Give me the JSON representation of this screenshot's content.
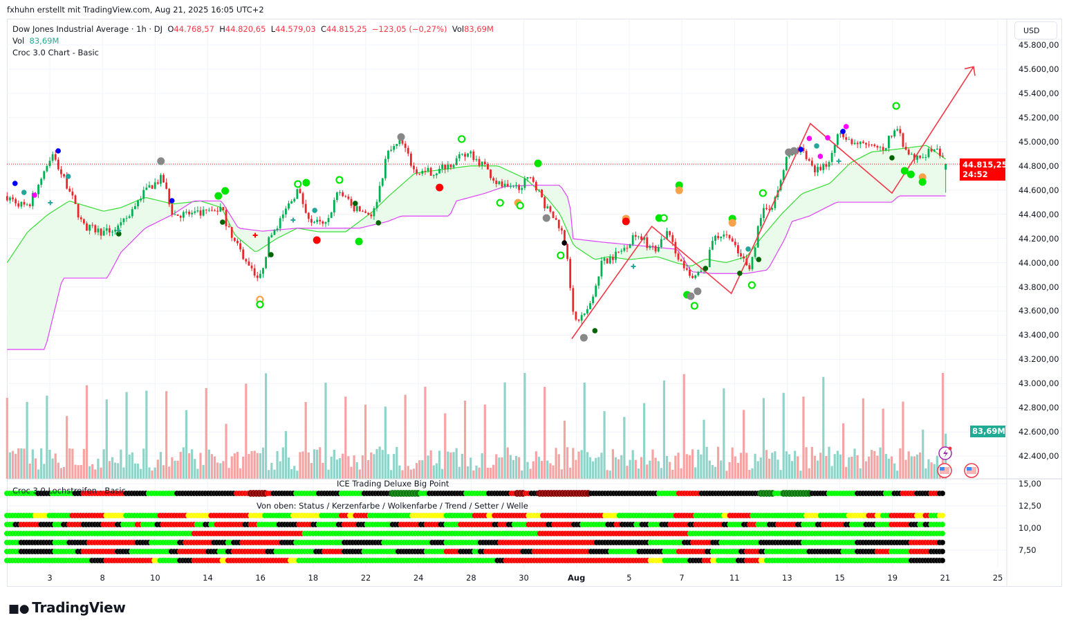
{
  "header": {
    "credit": "fxhuhn erstellt mit TradingView.com, Aug 21, 2025 16:05 UTC+2",
    "symbol": "Dow Jones Industrial Average · 1h · DJ",
    "o_label": "O",
    "o": "44.768,57",
    "h_label": "H",
    "h": "44.820,65",
    "l_label": "L",
    "l": "44.579,03",
    "c_label": "C",
    "c": "44.815,25",
    "change": "−123,05 (−0,27%)",
    "vol_label": "Vol",
    "vol": "83,69M",
    "vol_line_label": "Vol",
    "vol_line_value": "83,69M",
    "indicator": "Croc 3.0 Chart - Basic"
  },
  "price_axis": {
    "currency": "USD",
    "ticks": [
      "45.800,00",
      "45.600,00",
      "45.400,00",
      "45.200,00",
      "45.000,00",
      "44.800,00",
      "44.600,00",
      "44.400,00",
      "44.200,00",
      "44.000,00",
      "43.800,00",
      "43.600,00",
      "43.400,00",
      "43.200,00",
      "43.000,00",
      "42.800,00",
      "42.600,00",
      "42.400,00"
    ],
    "last_price": "44.815,25",
    "countdown": "24:52",
    "volume_badge": "83,69M"
  },
  "indicator_pane": {
    "title_center": "ICE Trading Deluxe Big Point",
    "title_left": "Croc 3.0 Lochstreifen - Basic",
    "subtitle": "Von oben: Status / Kerzenfarbe / Wolkenfarbe / Trend / Setter / Welle",
    "ticks": [
      "15,00",
      "12,50",
      "10,00",
      "7,50"
    ]
  },
  "time_axis": {
    "ticks": [
      "3",
      "8",
      "10",
      "14",
      "16",
      "18",
      "22",
      "24",
      "28",
      "30",
      "Aug",
      "5",
      "7",
      "11",
      "13",
      "15",
      "19",
      "21",
      "25"
    ]
  },
  "branding": {
    "logo": "TradingView"
  },
  "colors": {
    "up": "#00b050",
    "down": "#e8262b",
    "cloud_line": "#33dd33",
    "cloud_fill": "#e9fbe9",
    "lower_line": "#e040fb",
    "lower_fill": "#fdeefd",
    "trend_drawing": "#f23645",
    "vol_up": "#8fd3c9",
    "vol_down": "#f5a3a3",
    "last_price": "#ff0000"
  },
  "chart_data": {
    "type": "candlestick",
    "title": "Dow Jones Industrial Average · 1h",
    "time_unit_note_ticks": [
      "3",
      "8",
      "10",
      "14",
      "16",
      "18",
      "22",
      "24",
      "28",
      "30",
      "Aug",
      "5",
      "7",
      "11",
      "13",
      "15",
      "19",
      "21",
      "25"
    ],
    "ylim": [
      42250,
      45950
    ],
    "last_bar": {
      "open": 44768.57,
      "high": 44820.65,
      "low": 44579.03,
      "close": 44815.25,
      "volume_m": 83.69
    },
    "close_path": [
      [
        -0.81,
        44550
      ],
      [
        -0.42,
        44450
      ],
      [
        0.04,
        44900
      ],
      [
        0.37,
        44600
      ],
      [
        0.63,
        44300
      ],
      [
        1.02,
        44250
      ],
      [
        1.35,
        44300
      ],
      [
        1.81,
        44600
      ],
      [
        2.14,
        44700
      ],
      [
        2.34,
        44400
      ],
      [
        2.86,
        44400
      ],
      [
        3.26,
        44450
      ],
      [
        3.45,
        44200
      ],
      [
        3.85,
        43950
      ],
      [
        3.98,
        43850
      ],
      [
        4.17,
        44200
      ],
      [
        4.44,
        44400
      ],
      [
        4.7,
        44600
      ],
      [
        4.96,
        44350
      ],
      [
        5.23,
        44300
      ],
      [
        5.49,
        44600
      ],
      [
        5.75,
        44450
      ],
      [
        6.14,
        44400
      ],
      [
        6.41,
        44900
      ],
      [
        6.67,
        45000
      ],
      [
        6.93,
        44750
      ],
      [
        7.33,
        44750
      ],
      [
        7.72,
        44850
      ],
      [
        7.98,
        44900
      ],
      [
        8.24,
        44800
      ],
      [
        8.51,
        44650
      ],
      [
        8.77,
        44600
      ],
      [
        9.16,
        44700
      ],
      [
        9.43,
        44450
      ],
      [
        9.69,
        44300
      ],
      [
        9.82,
        44100
      ],
      [
        9.95,
        43500
      ],
      [
        10.21,
        43600
      ],
      [
        10.48,
        44000
      ],
      [
        10.87,
        44100
      ],
      [
        11.13,
        44250
      ],
      [
        11.46,
        44100
      ],
      [
        11.72,
        44250
      ],
      [
        11.99,
        44000
      ],
      [
        12.18,
        43850
      ],
      [
        12.45,
        43950
      ],
      [
        12.58,
        44200
      ],
      [
        12.84,
        44250
      ],
      [
        13.1,
        44050
      ],
      [
        13.3,
        43950
      ],
      [
        13.5,
        44400
      ],
      [
        13.76,
        44500
      ],
      [
        14.02,
        44900
      ],
      [
        14.28,
        44950
      ],
      [
        14.55,
        44750
      ],
      [
        14.81,
        44850
      ],
      [
        15.01,
        45100
      ],
      [
        15.2,
        45000
      ],
      [
        15.6,
        44950
      ],
      [
        15.86,
        44950
      ],
      [
        16.06,
        45150
      ],
      [
        16.25,
        44900
      ],
      [
        16.52,
        44850
      ],
      [
        16.78,
        44950
      ],
      [
        17.01,
        44815.25
      ]
    ],
    "cloud_upper": [
      [
        -0.81,
        44000
      ],
      [
        -0.42,
        44255
      ],
      [
        -0.03,
        44400
      ],
      [
        0.37,
        44510
      ],
      [
        1.02,
        44425
      ],
      [
        1.35,
        44455
      ],
      [
        1.81,
        44540
      ],
      [
        2.34,
        44485
      ],
      [
        2.86,
        44510
      ],
      [
        3.26,
        44455
      ],
      [
        3.52,
        44225
      ],
      [
        3.91,
        44085
      ],
      [
        4.31,
        44200
      ],
      [
        4.7,
        44285
      ],
      [
        5.1,
        44255
      ],
      [
        5.62,
        44255
      ],
      [
        6.14,
        44425
      ],
      [
        6.41,
        44540
      ],
      [
        6.93,
        44740
      ],
      [
        7.46,
        44770
      ],
      [
        7.98,
        44800
      ],
      [
        8.51,
        44800
      ],
      [
        9.03,
        44695
      ],
      [
        9.43,
        44540
      ],
      [
        9.69,
        44400
      ],
      [
        9.95,
        44140
      ],
      [
        10.35,
        44025
      ],
      [
        10.61,
        44050
      ],
      [
        11.0,
        44025
      ],
      [
        11.53,
        44050
      ],
      [
        11.92,
        43995
      ],
      [
        12.18,
        43970
      ],
      [
        12.45,
        44030
      ],
      [
        12.84,
        44000
      ],
      [
        13.23,
        44050
      ],
      [
        13.5,
        44200
      ],
      [
        13.89,
        44400
      ],
      [
        14.28,
        44570
      ],
      [
        14.81,
        44655
      ],
      [
        15.2,
        44825
      ],
      [
        15.6,
        44915
      ],
      [
        16.12,
        44940
      ],
      [
        16.65,
        44970
      ],
      [
        17.01,
        44855
      ]
    ],
    "cloud_lower": [
      [
        -0.81,
        43282
      ],
      [
        -0.09,
        43282
      ],
      [
        0.24,
        43872
      ],
      [
        1.09,
        43872
      ],
      [
        1.35,
        44085
      ],
      [
        1.81,
        44285
      ],
      [
        2.34,
        44400
      ],
      [
        2.73,
        44510
      ],
      [
        3.26,
        44510
      ],
      [
        3.58,
        44285
      ],
      [
        4.04,
        44260
      ],
      [
        4.7,
        44285
      ],
      [
        5.36,
        44285
      ],
      [
        5.88,
        44285
      ],
      [
        6.41,
        44340
      ],
      [
        6.67,
        44385
      ],
      [
        7.59,
        44385
      ],
      [
        7.72,
        44510
      ],
      [
        8.24,
        44570
      ],
      [
        8.64,
        44630
      ],
      [
        9.16,
        44640
      ],
      [
        9.69,
        44640
      ],
      [
        9.88,
        44510
      ],
      [
        9.89,
        44200
      ],
      [
        10.48,
        44170
      ],
      [
        11.92,
        44110
      ],
      [
        12.18,
        43925
      ],
      [
        12.58,
        43910
      ],
      [
        13.23,
        43910
      ],
      [
        13.63,
        43940
      ],
      [
        13.96,
        44200
      ],
      [
        14.09,
        44340
      ],
      [
        14.42,
        44385
      ],
      [
        14.94,
        44500
      ],
      [
        15.99,
        44500
      ],
      [
        16.12,
        44552
      ],
      [
        17.01,
        44552
      ]
    ],
    "drawings": [
      [
        9.91,
        43370
      ],
      [
        11.43,
        44300
      ],
      [
        12.94,
        43745
      ],
      [
        14.44,
        45150
      ],
      [
        15.99,
        44575
      ],
      [
        17.54,
        45620
      ]
    ],
    "signals": [
      [
        -0.66,
        44655,
        "b",
        0
      ],
      [
        -0.49,
        44581,
        "t",
        0
      ],
      [
        -0.29,
        44558,
        "m",
        0
      ],
      [
        0.16,
        44924,
        "b",
        0
      ],
      [
        0.35,
        44713,
        "t",
        0
      ],
      [
        1.31,
        44238,
        "G",
        0
      ],
      [
        2.11,
        44839,
        "a",
        0
      ],
      [
        2.32,
        44512,
        "b",
        0
      ],
      [
        3.2,
        44552,
        "g",
        0
      ],
      [
        3.33,
        44593,
        "g",
        0
      ],
      [
        3.28,
        44335,
        "G",
        0
      ],
      [
        3.99,
        43694,
        "o",
        1
      ],
      [
        3.99,
        43654,
        "g",
        1
      ],
      [
        4.2,
        44066,
        "G",
        0
      ],
      [
        4.71,
        44650,
        "g",
        1
      ],
      [
        4.87,
        44661,
        "g",
        0
      ],
      [
        5.03,
        44432,
        "t",
        0
      ],
      [
        5.07,
        44186,
        "r",
        0
      ],
      [
        5.5,
        44684,
        "g",
        1
      ],
      [
        5.8,
        44490,
        "G",
        0
      ],
      [
        5.87,
        44175,
        "g",
        0
      ],
      [
        6.24,
        44329,
        "G",
        0
      ],
      [
        6.67,
        45039,
        "a",
        0
      ],
      [
        7.82,
        45022,
        "g",
        1
      ],
      [
        7.4,
        44621,
        "r",
        0
      ],
      [
        8.55,
        44495,
        "g",
        1
      ],
      [
        8.89,
        44495,
        "o",
        0
      ],
      [
        8.93,
        44472,
        "g",
        1
      ],
      [
        9.27,
        44821,
        "g",
        0
      ],
      [
        9.43,
        44369,
        "a",
        0
      ],
      [
        9.77,
        44163,
        "k",
        0
      ],
      [
        9.7,
        44060,
        "g",
        1
      ],
      [
        10.14,
        43379,
        "a",
        0
      ],
      [
        10.35,
        43437,
        "G",
        0
      ],
      [
        10.94,
        44364,
        "o",
        0
      ],
      [
        10.94,
        44341,
        "r",
        0
      ],
      [
        11.57,
        44369,
        "g",
        0
      ],
      [
        11.66,
        44369,
        "g",
        1
      ],
      [
        11.95,
        44640,
        "g",
        0
      ],
      [
        11.95,
        44598,
        "o",
        0
      ],
      [
        12.1,
        43734,
        "g",
        0
      ],
      [
        12.17,
        43723,
        "a",
        0
      ],
      [
        12.3,
        43763,
        "a",
        0
      ],
      [
        12.24,
        43643,
        "g",
        1
      ],
      [
        12.45,
        43952,
        "G",
        0
      ],
      [
        12.96,
        44364,
        "g",
        0
      ],
      [
        12.96,
        44329,
        "o",
        0
      ],
      [
        13.1,
        43912,
        "G",
        0
      ],
      [
        13.26,
        44112,
        "t",
        0
      ],
      [
        13.33,
        43814,
        "g",
        1
      ],
      [
        13.46,
        44026,
        "G",
        0
      ],
      [
        13.54,
        44575,
        "g",
        1
      ],
      [
        14.03,
        44913,
        "a",
        0
      ],
      [
        14.13,
        44924,
        "a",
        0
      ],
      [
        14.26,
        44936,
        "b",
        0
      ],
      [
        14.42,
        45027,
        "m",
        0
      ],
      [
        14.56,
        44965,
        "t",
        0
      ],
      [
        14.63,
        44879,
        "m",
        0
      ],
      [
        15.06,
        45085,
        "b",
        0
      ],
      [
        15.12,
        45125,
        "m",
        0
      ],
      [
        14.77,
        45033,
        "m",
        0
      ],
      [
        16.07,
        45296,
        "g",
        1
      ],
      [
        15.99,
        44867,
        "G",
        0
      ],
      [
        16.23,
        44759,
        "g",
        0
      ],
      [
        16.35,
        44730,
        "g",
        0
      ],
      [
        16.57,
        44707,
        "o",
        0
      ],
      [
        16.57,
        44667,
        "g",
        0
      ]
    ],
    "crosses": [
      [
        0.01,
        44495,
        "t"
      ],
      [
        1.31,
        44266,
        "t"
      ],
      [
        4.62,
        44352,
        "t"
      ],
      [
        11.08,
        43969,
        "t"
      ],
      [
        14.98,
        44839,
        "t"
      ],
      [
        3.9,
        44226,
        "r"
      ]
    ],
    "indicator_rows": [
      {
        "name": "lochstreifen",
        "value": 14.0,
        "runs": "g4k2g3k1r6k3g4k8r2d2r1k3g3k3g3k4G4g1k5g3k3r1d1r1k1d7k9g3r3k8G2g1G4k2g4k4g1k1r2k2r1k1"
      },
      {
        "name": "status",
        "value": 11.5,
        "runs": "g4y2g3r5y3g5r4y3r6y2g4y4g3r1y1r2g6y5g4r2y1r5y2r9y2g2g1g1g4r3g1g3y1r3g8y2g4y3r1y1g1r4y1r1g1y1"
      },
      {
        "name": "kerzenfarbe",
        "value": 10.5,
        "runs": "g1k1r3k2g1k1r2k3r2k1g2r1g2k1r5g1k1g1r4k1r1g3k3r2k1g3k1r2k1g4k1r3k1r2k1g2r5k1r1k1g2r3k1r3k1g4k1r1k2g1k1g2k1r3k1r4k1g2k1r1g2k1r3k1g2k1r3k1g2k2g2r3k1g1k1g2"
      },
      {
        "name": "wolkenfarbe",
        "value": 9.5,
        "runs": "g27r16g34r22g37"
      },
      {
        "name": "trend",
        "value": 8.5,
        "runs": "g2k5g2k3r7k2g4k1r4k2g1k1r6k2g7k6g7k2g4g1k3r5r9k8g5k1r3k1g6k6g8k8r4k1"
      },
      {
        "name": "setter",
        "value": 7.5,
        "runs": "g2k5g3k1r5k2g6k1r4k2g1k1r5k1g6k1r3k3g5k4g3r2k2g1k1r5k2r8k3g4k4g2r4k1g4k1r2k1g6k5g2k3r2g3r3k2"
      },
      {
        "name": "welle",
        "value": 6.5,
        "runs": "g12k2r7y1g3k2r4y1r9y1g29k1r21y2g4k2r1y1g3k1r2y1g21k5"
      }
    ]
  }
}
